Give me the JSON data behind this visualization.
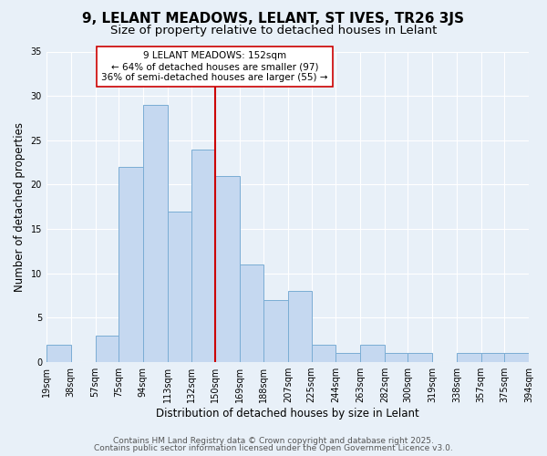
{
  "title": "9, LELANT MEADOWS, LELANT, ST IVES, TR26 3JS",
  "subtitle": "Size of property relative to detached houses in Lelant",
  "xlabel": "Distribution of detached houses by size in Lelant",
  "ylabel": "Number of detached properties",
  "bin_labels": [
    "19sqm",
    "38sqm",
    "57sqm",
    "75sqm",
    "94sqm",
    "113sqm",
    "132sqm",
    "150sqm",
    "169sqm",
    "188sqm",
    "207sqm",
    "225sqm",
    "244sqm",
    "263sqm",
    "282sqm",
    "300sqm",
    "319sqm",
    "338sqm",
    "357sqm",
    "375sqm",
    "394sqm"
  ],
  "bin_edges": [
    19,
    38,
    57,
    75,
    94,
    113,
    132,
    150,
    169,
    188,
    207,
    225,
    244,
    263,
    282,
    300,
    319,
    338,
    357,
    375,
    394
  ],
  "bar_heights": [
    2,
    0,
    3,
    22,
    29,
    17,
    24,
    21,
    11,
    7,
    8,
    2,
    1,
    2,
    1,
    1,
    0,
    1,
    1,
    1
  ],
  "bar_color": "#c5d8f0",
  "bar_edgecolor": "#7aadd4",
  "vline_x": 150,
  "vline_color": "#cc0000",
  "annotation_line1": "9 LELANT MEADOWS: 152sqm",
  "annotation_line2": "← 64% of detached houses are smaller (97)",
  "annotation_line3": "36% of semi-detached houses are larger (55) →",
  "annotation_box_edgecolor": "#cc0000",
  "annotation_box_facecolor": "#ffffff",
  "ylim": [
    0,
    35
  ],
  "yticks": [
    0,
    5,
    10,
    15,
    20,
    25,
    30,
    35
  ],
  "bg_color": "#e8f0f8",
  "grid_color": "#ffffff",
  "footer_line1": "Contains HM Land Registry data © Crown copyright and database right 2025.",
  "footer_line2": "Contains public sector information licensed under the Open Government Licence v3.0.",
  "title_fontsize": 11,
  "subtitle_fontsize": 9.5,
  "axis_label_fontsize": 8.5,
  "tick_fontsize": 7,
  "annotation_fontsize": 7.5,
  "footer_fontsize": 6.5
}
